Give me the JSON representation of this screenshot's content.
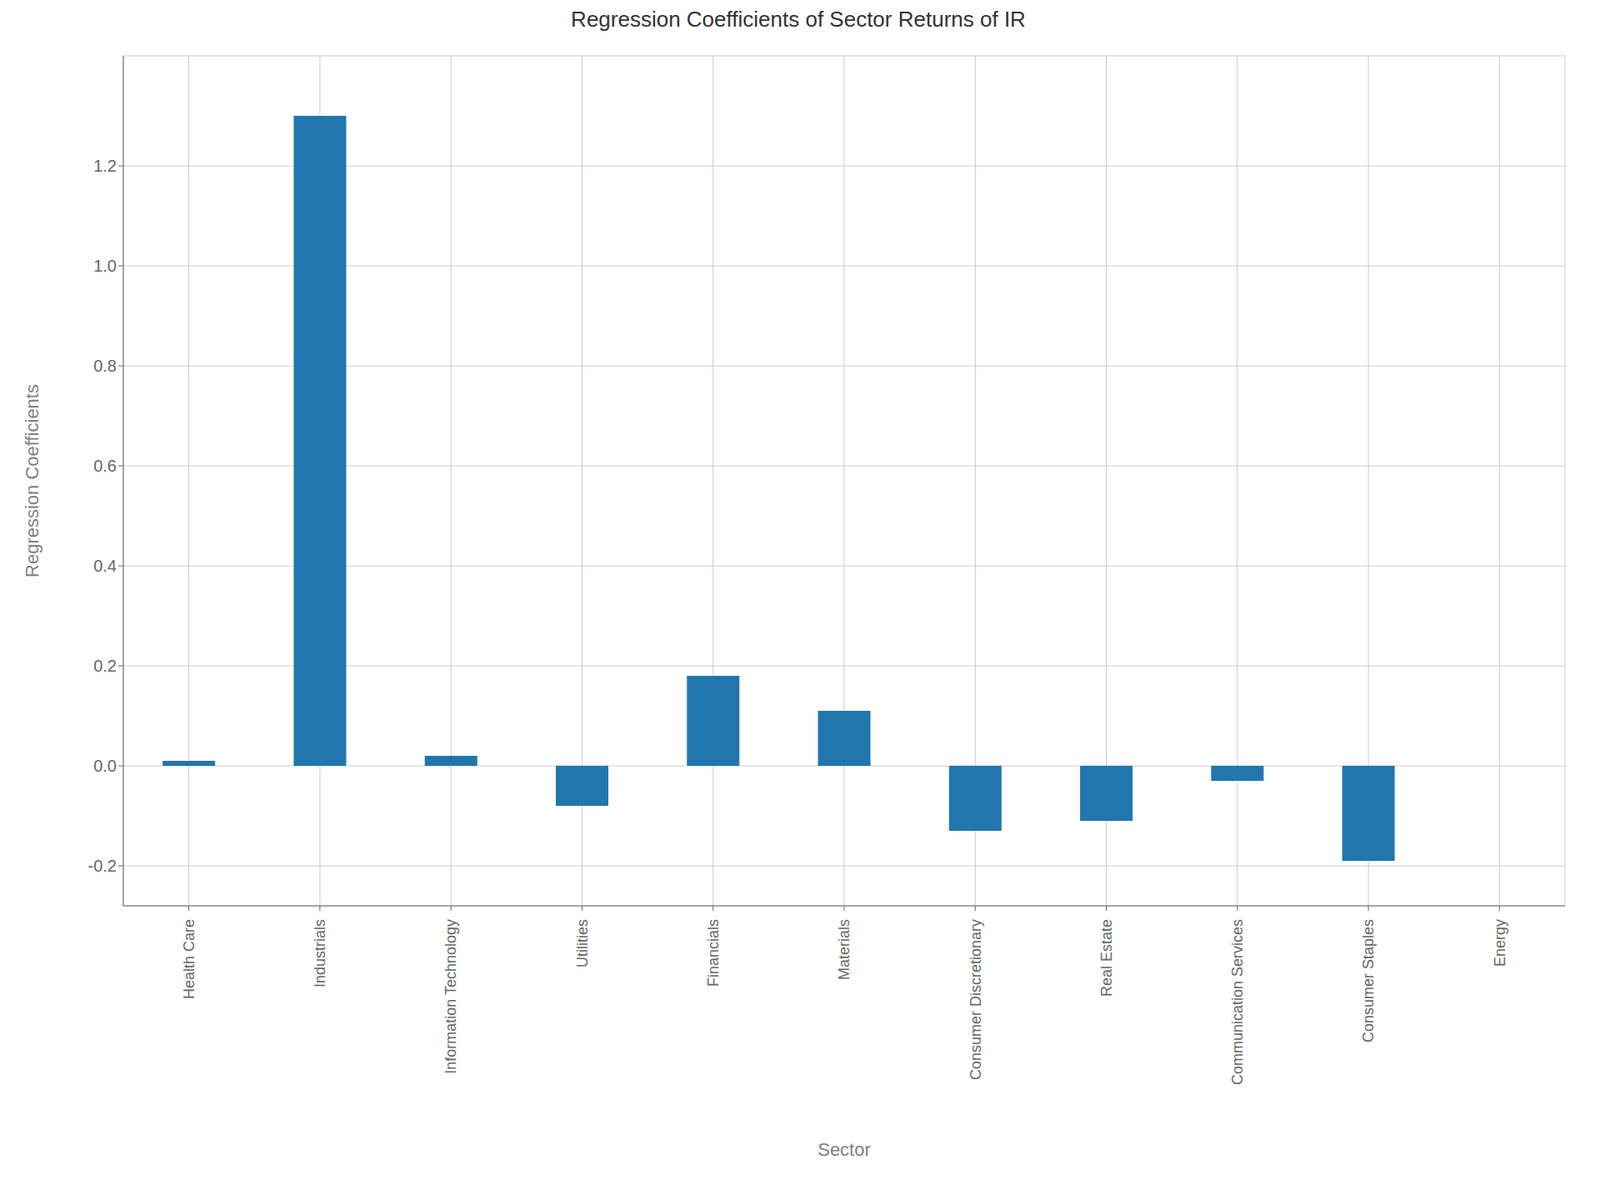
{
  "chart_data": {
    "type": "bar",
    "title": "Regression Coefficients of Sector Returns of IR",
    "xlabel": "Sector",
    "ylabel": "Regression Coefficients",
    "categories": [
      "Health Care",
      "Industrials",
      "Information Technology",
      "Utilities",
      "Financials",
      "Materials",
      "Consumer Discretionary",
      "Real Estate",
      "Communication Services",
      "Consumer Staples",
      "Energy"
    ],
    "values": [
      0.01,
      1.3,
      0.02,
      -0.08,
      0.18,
      0.11,
      -0.13,
      -0.11,
      -0.03,
      -0.19,
      0.0
    ],
    "color": "#2176AE",
    "ylim": [
      -0.28,
      1.42
    ],
    "yticks": [
      -0.2,
      {
        "value": 0,
        "label": "0.0"
      },
      0.2,
      0.4,
      0.6,
      0.8,
      {
        "value": 1,
        "label": "1.0"
      },
      1.2
    ],
    "grid": true
  }
}
